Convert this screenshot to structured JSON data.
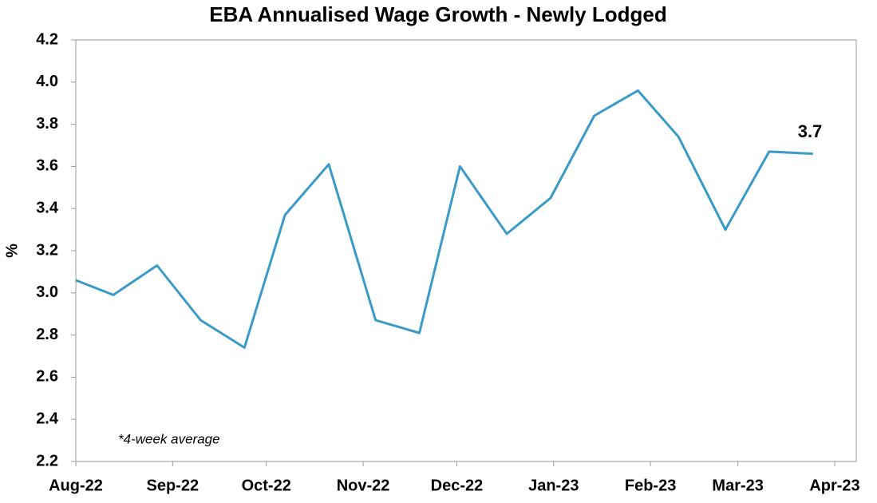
{
  "chart_data": {
    "type": "line",
    "title": "EBA Annualised Wage Growth - Newly Lodged",
    "y_label": "%",
    "annotation": "3.7",
    "note": "*4-week average",
    "x": [
      0,
      12,
      26,
      40,
      54,
      67,
      81,
      96,
      110,
      123,
      138,
      152,
      166,
      180,
      193,
      208,
      222,
      236
    ],
    "values": [
      3.06,
      2.99,
      3.13,
      2.87,
      2.74,
      3.37,
      3.61,
      2.87,
      2.81,
      3.6,
      3.28,
      3.45,
      3.84,
      3.96,
      3.74,
      3.3,
      3.67,
      3.66
    ],
    "color": "#3a9ac8",
    "xlim": [
      0,
      243
    ],
    "xticks": [
      {
        "value": 0,
        "label": "Aug-22"
      },
      {
        "value": 31,
        "label": "Sep-22"
      },
      {
        "value": 61,
        "label": "Oct-22"
      },
      {
        "value": 92,
        "label": "Nov-22"
      },
      {
        "value": 122,
        "label": "Dec-22"
      },
      {
        "value": 153,
        "label": "Jan-23"
      },
      {
        "value": 184,
        "label": "Feb-23"
      },
      {
        "value": 212,
        "label": "Mar-23"
      },
      {
        "value": 243,
        "label": "Apr-23"
      }
    ],
    "ylim": [
      2.2,
      4.2
    ],
    "yticks": [
      2.2,
      2.4,
      2.6,
      2.8,
      {
        "value": 3,
        "label": "3.0"
      },
      3.2,
      3.4,
      3.6,
      3.8,
      {
        "value": 4,
        "label": "4.0"
      },
      4.2
    ],
    "grid": false
  }
}
